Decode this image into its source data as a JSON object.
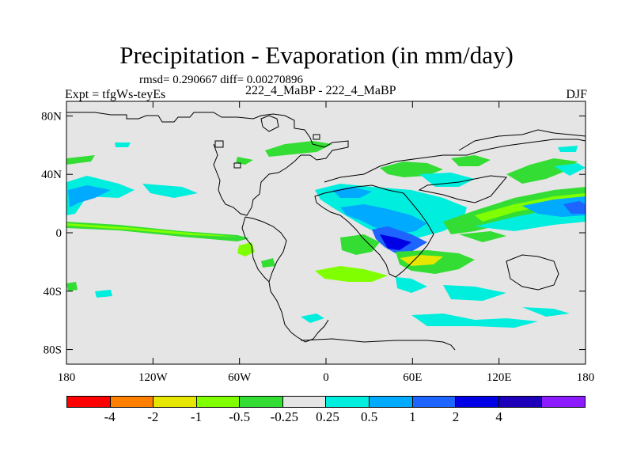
{
  "title": "Precipitation - Evaporation (in mm/day)",
  "stats": "rmsd= 0.290667 diff= 0.00270896",
  "subtitle": "222_4_MaBP - 222_4_MaBP",
  "expt_label": "Expt = tfgWs-teyEs",
  "season": "DJF",
  "axes": {
    "lon_ticks": [
      {
        "lon": -180,
        "label": "180"
      },
      {
        "lon": -120,
        "label": "120W"
      },
      {
        "lon": -60,
        "label": "60W"
      },
      {
        "lon": 0,
        "label": "0"
      },
      {
        "lon": 60,
        "label": "60E"
      },
      {
        "lon": 120,
        "label": "120E"
      },
      {
        "lon": 180,
        "label": "180"
      }
    ],
    "lat_ticks": [
      {
        "lat": 80,
        "label": "80N"
      },
      {
        "lat": 40,
        "label": "40N"
      },
      {
        "lat": 0,
        "label": "0"
      },
      {
        "lat": -40,
        "label": "40S"
      },
      {
        "lat": -80,
        "label": "80S"
      }
    ]
  },
  "colorbar": {
    "colors": [
      "#ff0000",
      "#ff8000",
      "#e6e600",
      "#80ff00",
      "#33dd33",
      "#e5e5e5",
      "#00eedd",
      "#00aaff",
      "#1e64ff",
      "#0000e6",
      "#1e00bb",
      "#8c1cff"
    ],
    "labels": [
      "-4",
      "-2",
      "-1",
      "-0.5",
      "-0.25",
      "0.25",
      "0.5",
      "1",
      "2",
      "4"
    ]
  },
  "map_colors": {
    "background": "#e5e5e5",
    "green": "#33dd33",
    "light_green": "#80ff00",
    "yellow": "#e6e600",
    "cyan": "#00eedd",
    "light_blue": "#00aaff",
    "blue": "#1e64ff",
    "dark_blue": "#0000e6"
  }
}
